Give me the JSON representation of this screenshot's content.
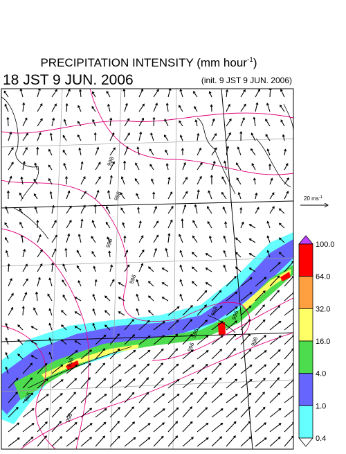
{
  "header": {
    "title_main": "PRECIPITATION INTENSITY (mm hour",
    "title_sup": "-1",
    "title_end": ")",
    "valid_time": "18 JST 9 JUN. 2006",
    "init_time": "(init. 9 JST 9 JUN. 2006)"
  },
  "wind_scale": {
    "label": "20 ms",
    "label_sup": "-1"
  },
  "colorbar": {
    "levels": [
      {
        "label": "100.0",
        "color": "#ff0000"
      },
      {
        "label": "64.0",
        "color": "#ffa040"
      },
      {
        "label": "32.0",
        "color": "#ffff66"
      },
      {
        "label": "16.0",
        "color": "#4ddc4d"
      },
      {
        "label": "4.0",
        "color": "#6666ff"
      },
      {
        "label": "1.0",
        "color": "#66ffff"
      },
      {
        "label": "0.4",
        "color": "#ffffff"
      }
    ],
    "top_color": "#c040ff"
  },
  "map": {
    "contour_labels": [
      "998",
      "998",
      "996",
      "998",
      "996",
      "996",
      "998",
      "998",
      "996",
      "998",
      "996",
      "996"
    ]
  }
}
